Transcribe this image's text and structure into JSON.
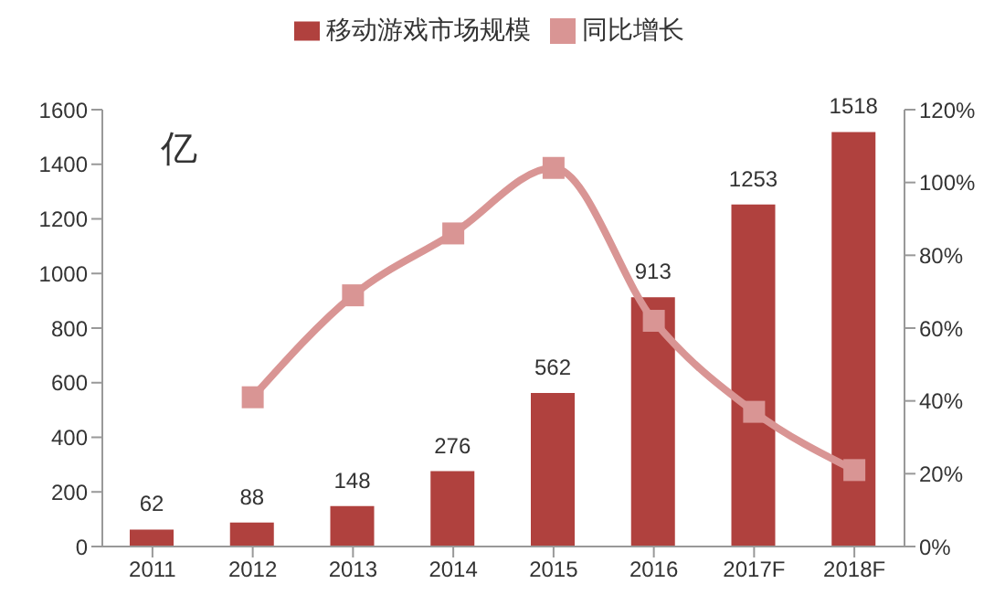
{
  "chart_data": {
    "type": "bar",
    "categories": [
      "2011",
      "2012",
      "2013",
      "2014",
      "2015",
      "2016",
      "2017F",
      "2018F"
    ],
    "series": [
      {
        "name": "移动游戏市场规模",
        "color": "#b0413e",
        "values": [
          62,
          88,
          148,
          276,
          562,
          913,
          1253,
          1518
        ],
        "data_labels": true
      },
      {
        "name": "同比增长",
        "type": "line",
        "axis": "y2",
        "color": "#d99594",
        "values": [
          null,
          41,
          69,
          86,
          104,
          62,
          37,
          21
        ]
      }
    ],
    "ylim": [
      0,
      1600
    ],
    "yticks": [
      0,
      200,
      400,
      600,
      800,
      1000,
      1200,
      1400,
      1600
    ],
    "y2lim": [
      0,
      120
    ],
    "y2ticks": [
      {
        "value": 0,
        "label": "0%"
      },
      {
        "value": 20,
        "label": "20%"
      },
      {
        "value": 40,
        "label": "40%"
      },
      {
        "value": 60,
        "label": "60%"
      },
      {
        "value": 80,
        "label": "80%"
      },
      {
        "value": 100,
        "label": "100%"
      },
      {
        "value": 120,
        "label": "120%"
      }
    ],
    "annotations": [
      "亿"
    ],
    "grid": false,
    "legend": "top",
    "marker": "square",
    "line_style": "solid"
  }
}
